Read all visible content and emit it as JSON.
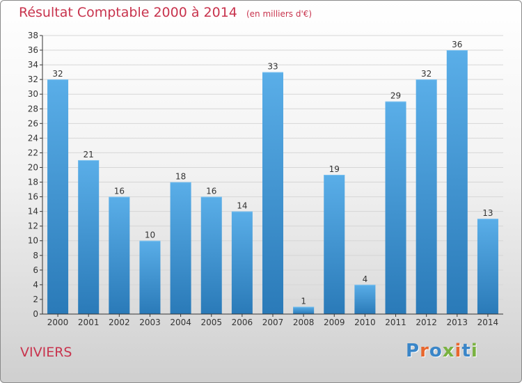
{
  "header": {
    "title": "Résultat Comptable 2000 à 2014",
    "unit": "(en milliers d'€)"
  },
  "commune": "VIVIERS",
  "logo": {
    "text": "Proxiti",
    "letters": [
      {
        "ch": "P",
        "color": "#3a86c8"
      },
      {
        "ch": "r",
        "color": "#e8672e"
      },
      {
        "ch": "o",
        "color": "#3a86c8"
      },
      {
        "ch": "x",
        "color": "#7ab241"
      },
      {
        "ch": "i",
        "color": "#e8672e"
      },
      {
        "ch": "t",
        "color": "#3a86c8"
      },
      {
        "ch": "i",
        "color": "#7ab241"
      }
    ]
  },
  "colors": {
    "title": "#c8334d",
    "bar_light": "#5aaee8",
    "bar_dark": "#2a7ab8",
    "grid": "#d6d6d6",
    "axis": "#333333"
  },
  "chart_data": {
    "type": "bar",
    "title": "Résultat Comptable 2000 à 2014",
    "subtitle": "(en milliers d'€)",
    "categories": [
      "2000",
      "2001",
      "2002",
      "2003",
      "2004",
      "2005",
      "2006",
      "2007",
      "2008",
      "2009",
      "2010",
      "2011",
      "2012",
      "2013",
      "2014"
    ],
    "values": [
      32,
      21,
      16,
      10,
      18,
      16,
      14,
      33,
      1,
      19,
      4,
      29,
      32,
      36,
      13
    ],
    "xlabel": "",
    "ylabel": "",
    "ylim": [
      0,
      38
    ],
    "ytick_step": 2,
    "grid": true,
    "legend": "none"
  }
}
